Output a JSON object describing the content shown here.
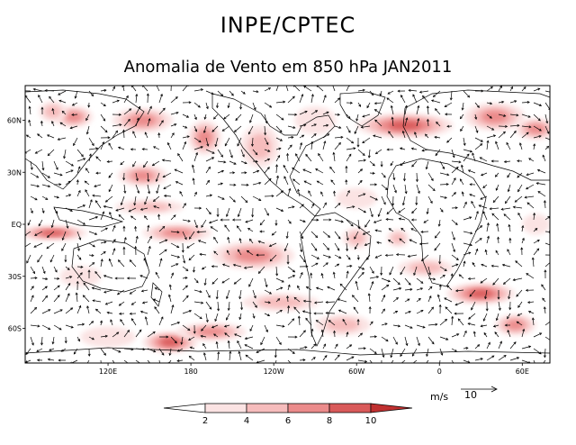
{
  "header": {
    "title": "INPE/CPTEC",
    "subtitle": "Anomalia de Vento em 850 hPa JAN2011"
  },
  "map": {
    "lon_ticks": [
      "120E",
      "180",
      "120W",
      "60W",
      "0",
      "60E"
    ],
    "lat_ticks": [
      "60N",
      "30N",
      "EQ",
      "30S",
      "60S"
    ],
    "lon_tick_values": [
      120,
      180,
      240,
      300,
      360,
      420
    ],
    "lat_tick_values": [
      60,
      30,
      0,
      -30,
      -60
    ],
    "lon_range": [
      60,
      440
    ],
    "lat_range": [
      -80,
      80
    ]
  },
  "reference_vector": {
    "units": "m/s",
    "value": "10"
  },
  "colorbar": {
    "labels": [
      "2",
      "4",
      "6",
      "8",
      "10"
    ],
    "colors": [
      "#ffffff",
      "#fbe3e3",
      "#f6bcbc",
      "#eb8b8b",
      "#d95a5a",
      "#c03030"
    ]
  },
  "anomaly_patches": [
    {
      "lon": 95,
      "lat": 62,
      "rx": 14,
      "ry": 6,
      "level": 3
    },
    {
      "lon": 145,
      "lat": 60,
      "rx": 22,
      "ry": 7,
      "level": 3
    },
    {
      "lon": 190,
      "lat": 50,
      "rx": 12,
      "ry": 10,
      "level": 3
    },
    {
      "lon": 230,
      "lat": 45,
      "rx": 14,
      "ry": 12,
      "level": 2
    },
    {
      "lon": 145,
      "lat": 28,
      "rx": 18,
      "ry": 6,
      "level": 3
    },
    {
      "lon": 335,
      "lat": 57,
      "rx": 35,
      "ry": 7,
      "level": 4
    },
    {
      "lon": 400,
      "lat": 62,
      "rx": 22,
      "ry": 8,
      "level": 3
    },
    {
      "lon": 430,
      "lat": 55,
      "rx": 15,
      "ry": 6,
      "level": 3
    },
    {
      "lon": 80,
      "lat": 65,
      "rx": 10,
      "ry": 6,
      "level": 2
    },
    {
      "lon": 80,
      "lat": -5,
      "rx": 25,
      "ry": 4,
      "level": 4
    },
    {
      "lon": 170,
      "lat": -5,
      "rx": 25,
      "ry": 5,
      "level": 3
    },
    {
      "lon": 225,
      "lat": -18,
      "rx": 30,
      "ry": 8,
      "level": 3
    },
    {
      "lon": 150,
      "lat": 10,
      "rx": 25,
      "ry": 4,
      "level": 2
    },
    {
      "lon": 300,
      "lat": -8,
      "rx": 10,
      "ry": 6,
      "level": 2
    },
    {
      "lon": 330,
      "lat": -8,
      "rx": 8,
      "ry": 5,
      "level": 2
    },
    {
      "lon": 245,
      "lat": -45,
      "rx": 28,
      "ry": 5,
      "level": 2
    },
    {
      "lon": 165,
      "lat": -68,
      "rx": 20,
      "ry": 6,
      "level": 4
    },
    {
      "lon": 195,
      "lat": -62,
      "rx": 25,
      "ry": 5,
      "level": 3
    },
    {
      "lon": 290,
      "lat": -58,
      "rx": 20,
      "ry": 6,
      "level": 2
    },
    {
      "lon": 390,
      "lat": -40,
      "rx": 25,
      "ry": 6,
      "level": 4
    },
    {
      "lon": 415,
      "lat": -58,
      "rx": 15,
      "ry": 6,
      "level": 3
    },
    {
      "lon": 350,
      "lat": -25,
      "rx": 20,
      "ry": 5,
      "level": 2
    },
    {
      "lon": 100,
      "lat": -30,
      "rx": 15,
      "ry": 6,
      "level": 1
    },
    {
      "lon": 430,
      "lat": 0,
      "rx": 10,
      "ry": 6,
      "level": 1
    },
    {
      "lon": 300,
      "lat": 15,
      "rx": 15,
      "ry": 6,
      "level": 1
    },
    {
      "lon": 270,
      "lat": 60,
      "rx": 15,
      "ry": 8,
      "level": 1
    },
    {
      "lon": 120,
      "lat": -65,
      "rx": 20,
      "ry": 6,
      "level": 1
    }
  ]
}
